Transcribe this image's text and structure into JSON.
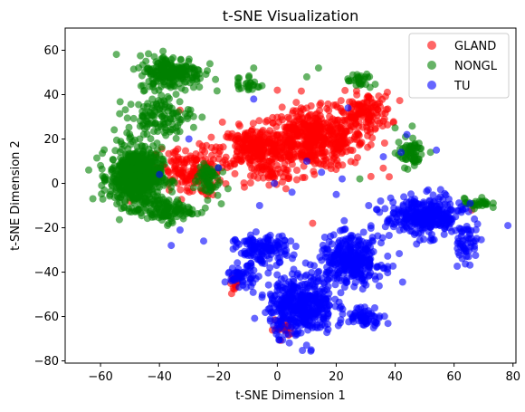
{
  "chart_data": {
    "type": "scatter",
    "title": "t-SNE Visualization",
    "xlabel": "t-SNE Dimension 1",
    "ylabel": "t-SNE Dimension 2",
    "xlim": [
      -72,
      81
    ],
    "ylim": [
      -81,
      70
    ],
    "xticks": [
      -60,
      -40,
      -20,
      0,
      20,
      40,
      60,
      80
    ],
    "yticks": [
      -80,
      -60,
      -40,
      -20,
      0,
      20,
      40,
      60
    ],
    "grid": false,
    "legend_position": "top-right",
    "series": [
      {
        "name": "GLAND",
        "color": "#ff0000",
        "alpha": 0.6,
        "clusters": [
          {
            "center": [
              12,
              20
            ],
            "spread": [
              16,
              12
            ],
            "n": 520
          },
          {
            "center": [
              -8,
              16
            ],
            "spread": [
              10,
              8
            ],
            "n": 220
          },
          {
            "center": [
              -30,
              5
            ],
            "spread": [
              10,
              10
            ],
            "n": 160
          },
          {
            "center": [
              30,
              32
            ],
            "spread": [
              8,
              8
            ],
            "n": 120
          },
          {
            "center": [
              2,
              -65
            ],
            "spread": [
              3,
              4
            ],
            "n": 25
          },
          {
            "center": [
              -14,
              -45
            ],
            "spread": [
              2,
              3
            ],
            "n": 12
          },
          {
            "center": [
              -2,
              4
            ],
            "spread": [
              6,
              4
            ],
            "n": 40
          }
        ],
        "points": [
          [
            -50,
            -8
          ],
          [
            -46,
            12
          ],
          [
            12,
            -18
          ],
          [
            66,
            -12
          ],
          [
            38,
            3
          ],
          [
            26,
            36
          ],
          [
            0,
            42
          ],
          [
            -33,
            33
          ]
        ]
      },
      {
        "name": "NONGL",
        "color": "#008000",
        "alpha": 0.6,
        "clusters": [
          {
            "center": [
              -48,
              3
            ],
            "spread": [
              8,
              12
            ],
            "n": 620
          },
          {
            "center": [
              -36,
              50
            ],
            "spread": [
              10,
              7
            ],
            "n": 220
          },
          {
            "center": [
              -40,
              30
            ],
            "spread": [
              10,
              8
            ],
            "n": 120
          },
          {
            "center": [
              -38,
              -12
            ],
            "spread": [
              8,
              5
            ],
            "n": 120
          },
          {
            "center": [
              -24,
              2
            ],
            "spread": [
              4,
              8
            ],
            "n": 60
          },
          {
            "center": [
              45,
              14
            ],
            "spread": [
              4,
              6
            ],
            "n": 60
          },
          {
            "center": [
              28,
              46
            ],
            "spread": [
              4,
              3
            ],
            "n": 30
          },
          {
            "center": [
              68,
              -9
            ],
            "spread": [
              4,
              2
            ],
            "n": 30
          },
          {
            "center": [
              -10,
              45
            ],
            "spread": [
              4,
              4
            ],
            "n": 25
          }
        ],
        "points": [
          [
            10,
            48
          ],
          [
            14,
            52
          ],
          [
            -8,
            52
          ],
          [
            40,
            25
          ],
          [
            28,
            2
          ],
          [
            -60,
            8
          ],
          [
            -64,
            6
          ],
          [
            52,
            14
          ]
        ]
      },
      {
        "name": "TU",
        "color": "#0000ff",
        "alpha": 0.6,
        "clusters": [
          {
            "center": [
              8,
              -55
            ],
            "spread": [
              10,
              12
            ],
            "n": 420
          },
          {
            "center": [
              25,
              -35
            ],
            "spread": [
              10,
              10
            ],
            "n": 320
          },
          {
            "center": [
              50,
              -15
            ],
            "spread": [
              12,
              8
            ],
            "n": 320
          },
          {
            "center": [
              -5,
              -30
            ],
            "spread": [
              8,
              6
            ],
            "n": 140
          },
          {
            "center": [
              -12,
              -42
            ],
            "spread": [
              5,
              4
            ],
            "n": 50
          },
          {
            "center": [
              30,
              -60
            ],
            "spread": [
              6,
              4
            ],
            "n": 60
          },
          {
            "center": [
              64,
              -27
            ],
            "spread": [
              4,
              8
            ],
            "n": 50
          }
        ],
        "points": [
          [
            -20,
            7
          ],
          [
            -40,
            4
          ],
          [
            -33,
            -21
          ],
          [
            -36,
            -28
          ],
          [
            -8,
            38
          ],
          [
            24,
            34
          ],
          [
            22,
            2
          ],
          [
            15,
            5
          ],
          [
            -30,
            20
          ],
          [
            10,
            10
          ],
          [
            36,
            12
          ],
          [
            44,
            22
          ],
          [
            42,
            14
          ],
          [
            54,
            15
          ],
          [
            -25,
            -26
          ],
          [
            -1,
            0
          ],
          [
            20,
            -5
          ],
          [
            31,
            -10
          ],
          [
            -6,
            -10
          ],
          [
            5,
            -4
          ]
        ]
      }
    ]
  }
}
